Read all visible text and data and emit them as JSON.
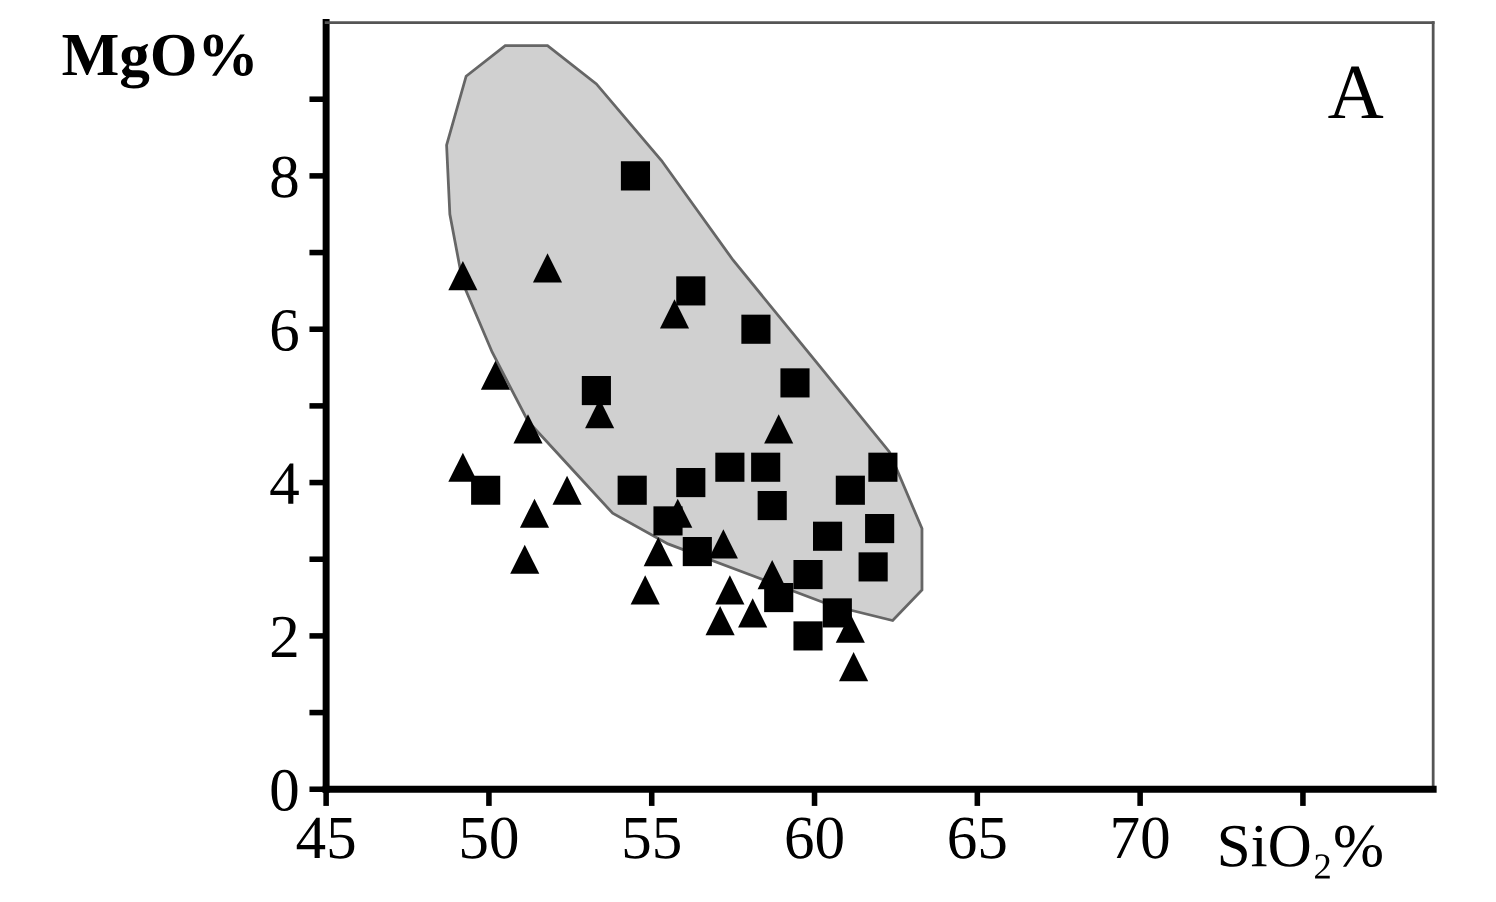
{
  "chart_data": {
    "type": "scatter",
    "xlabel": "SiO₂%",
    "ylabel": "MgO%",
    "annotations": [
      "A"
    ],
    "xlim": [
      45,
      79
    ],
    "ylim": [
      0,
      10
    ],
    "xticks": [
      45,
      50,
      55,
      60,
      65,
      70,
      {
        "value": 75,
        "label": null
      }
    ],
    "yticks": [
      0,
      {
        "value": 1,
        "label": null
      },
      2,
      {
        "value": 3,
        "label": null
      },
      4,
      {
        "value": 5,
        "label": null
      },
      6,
      {
        "value": 7,
        "label": null
      },
      8,
      {
        "value": 9,
        "label": null
      }
    ],
    "grid": false,
    "legend": false,
    "series": [
      {
        "type": "area",
        "color": "#d0d0d0",
        "x": [
          48.7,
          49.3,
          50.5,
          51.8,
          53.3,
          55.3,
          57.5,
          60,
          62.3,
          63.3,
          63.3,
          62.4,
          60.5,
          58,
          55.5,
          53.8,
          52.5,
          51.2,
          50.1,
          49.2,
          48.8,
          48.7
        ],
        "values": [
          8.4,
          9.3,
          9.7,
          9.7,
          9.2,
          8.2,
          6.9,
          5.6,
          4.4,
          3.4,
          2.6,
          2.2,
          2.4,
          2.8,
          3.2,
          3.6,
          4.2,
          4.8,
          5.7,
          6.6,
          7.5,
          8.4
        ]
      },
      {
        "marker": "square",
        "color": "#000000",
        "x": [
          54.5,
          56.2,
          58.2,
          59.4,
          53.3,
          49.9,
          54.4,
          56.2,
          57.4,
          58.5,
          62.1,
          61.1,
          62.0,
          61.8,
          59.8,
          58.9,
          59.8,
          60.7,
          55.5,
          56.4,
          58.7,
          60.4
        ],
        "values": [
          8.0,
          6.5,
          6.0,
          5.3,
          5.2,
          3.9,
          3.9,
          4.0,
          4.2,
          4.2,
          4.2,
          3.9,
          3.4,
          2.9,
          2.8,
          2.5,
          2.0,
          2.3,
          3.5,
          3.1,
          3.7,
          3.3
        ]
      },
      {
        "marker": "triangle",
        "color": "#000000",
        "x": [
          49.2,
          51.8,
          50.2,
          51.2,
          49.2,
          51.4,
          51.1,
          52.4,
          58.9,
          54.8,
          57.2,
          57.1,
          61.2,
          55.2,
          58.1,
          55.7,
          53.4,
          57.4,
          61.1,
          58.7,
          55.8
        ],
        "values": [
          6.7,
          6.8,
          5.4,
          4.7,
          4.2,
          3.6,
          3.0,
          3.9,
          4.7,
          2.6,
          3.2,
          2.2,
          1.6,
          3.1,
          2.3,
          6.2,
          4.9,
          2.6,
          2.1,
          2.8,
          3.6
        ]
      }
    ]
  }
}
